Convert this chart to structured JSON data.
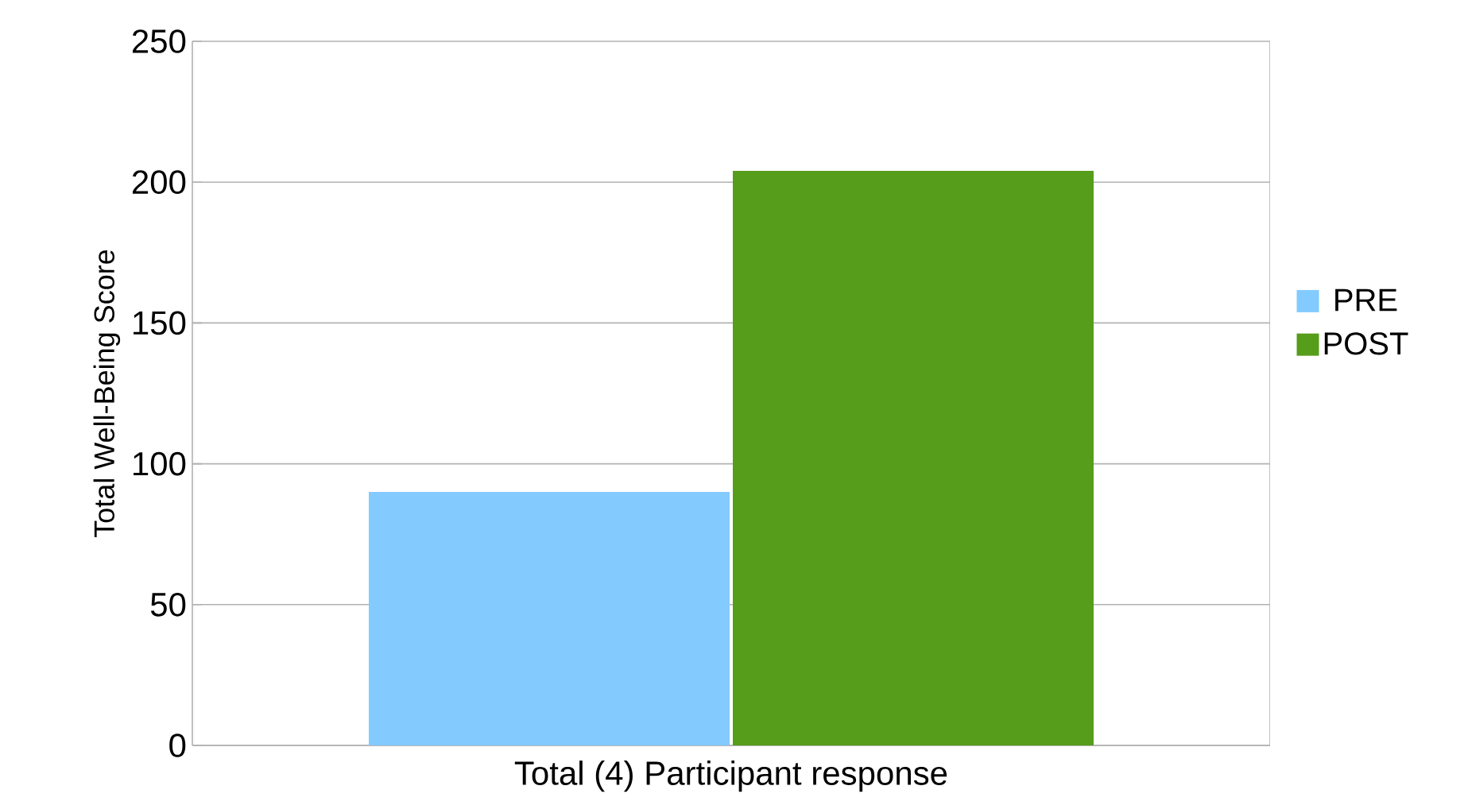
{
  "chart_data": {
    "type": "bar",
    "ylabel": "Total Well-Being Score",
    "categories": [
      "Total (4) Participant response"
    ],
    "series": [
      {
        "name": "PRE",
        "color": "#83caff",
        "values": [
          90
        ]
      },
      {
        "name": "POST",
        "color": "#579d1c",
        "values": [
          204
        ]
      }
    ],
    "ylim": [
      0,
      250
    ],
    "yticks": [
      0,
      50,
      100,
      150,
      200,
      250
    ],
    "grid": "y",
    "legend": "right"
  }
}
